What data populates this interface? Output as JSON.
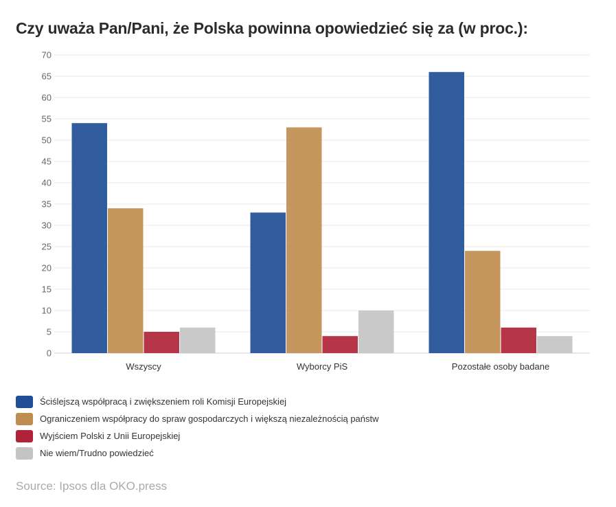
{
  "chart_data": {
    "type": "bar",
    "title": "Czy uważa Pan/Pani, że Polska powinna opowiedzieć się za (w proc.):",
    "categories": [
      "Wszyscy",
      "Wyborcy PiS",
      "Pozostałe osoby badane"
    ],
    "series": [
      {
        "name": "Ściślejszą współpracą i zwiększeniem roli Komisji Europejskiej",
        "color": "#1f4e96",
        "values": [
          54,
          33,
          66
        ]
      },
      {
        "name": "Ograniczeniem współpracy do spraw gospodarczych i większą niezależnością państw",
        "color": "#c08d50",
        "values": [
          34,
          53,
          24
        ]
      },
      {
        "name": "Wyjściem Polski z Unii Europejskiej",
        "color": "#b0243a",
        "values": [
          5,
          4,
          6
        ]
      },
      {
        "name": "Nie wiem/Trudno powiedzieć",
        "color": "#c4c4c4",
        "values": [
          6,
          10,
          4
        ]
      }
    ],
    "ylim": [
      0,
      70
    ],
    "yticks": [
      0,
      5,
      10,
      15,
      20,
      25,
      30,
      35,
      40,
      45,
      50,
      55,
      60,
      65,
      70
    ],
    "grid": true,
    "legend_position": "bottom-left",
    "source": "Source: Ipsos dla OKO.press"
  }
}
